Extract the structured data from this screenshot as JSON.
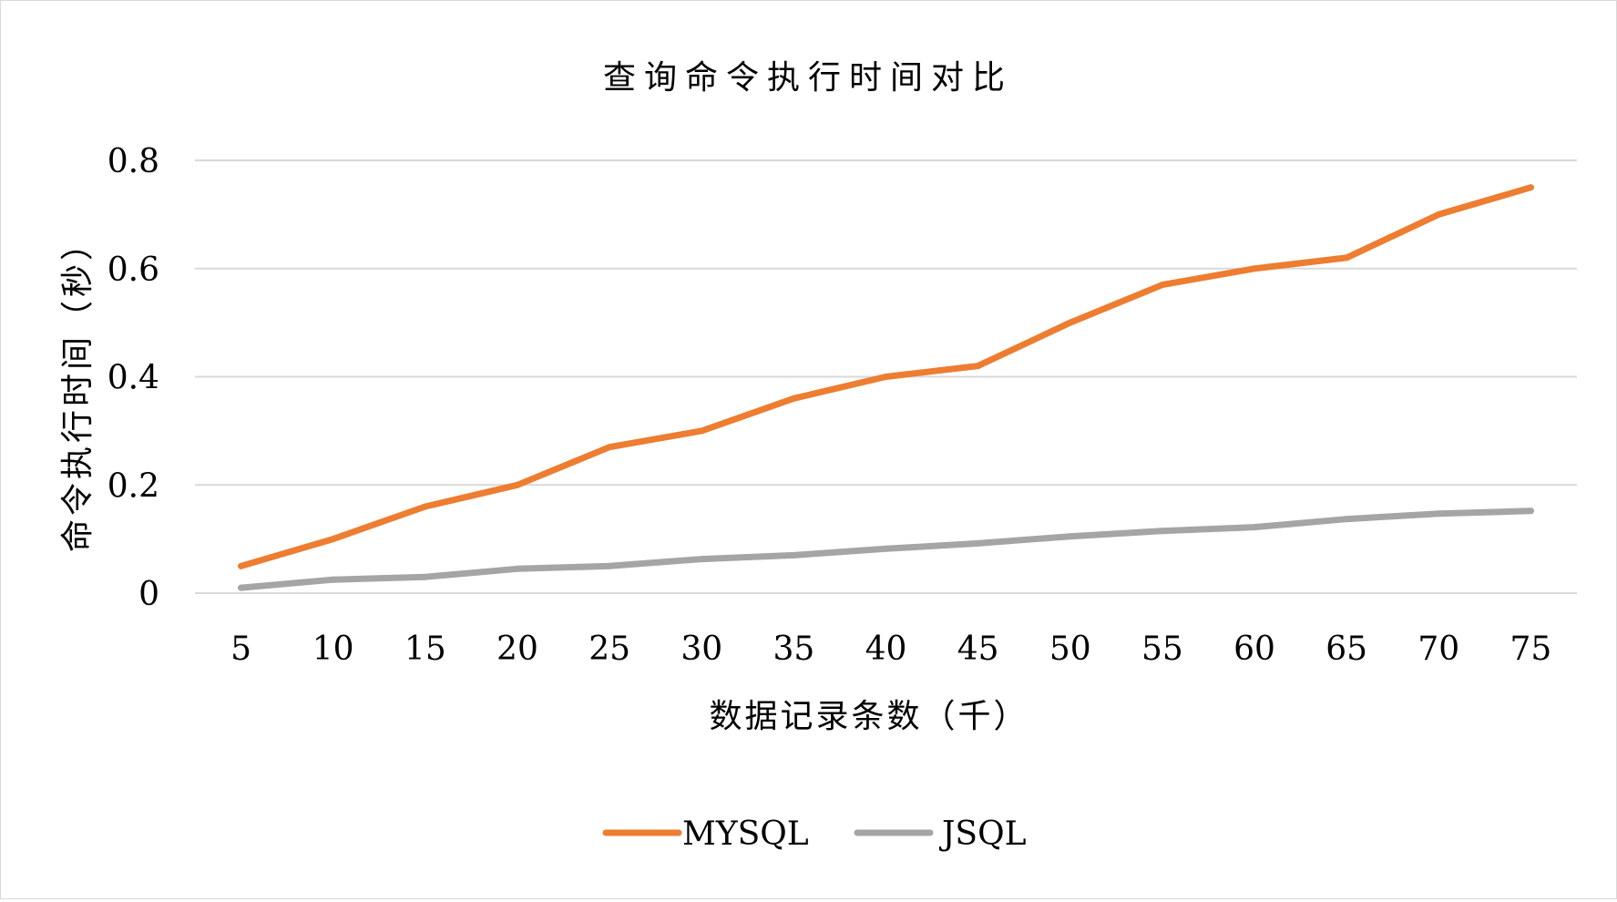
{
  "chart_data": {
    "type": "line",
    "title": "查询命令执行时间对比",
    "xlabel": "数据记录条数（千）",
    "ylabel": "命令执行时间（秒）",
    "categories": [
      "5",
      "10",
      "15",
      "20",
      "25",
      "30",
      "35",
      "40",
      "45",
      "50",
      "55",
      "60",
      "65",
      "70",
      "75"
    ],
    "y_ticks": [
      "0",
      "0.2",
      "0.4",
      "0.6",
      "0.8"
    ],
    "ylim": [
      0,
      0.8
    ],
    "grid": true,
    "legend_position": "bottom",
    "series": [
      {
        "name": "MYSQL",
        "color": "#ED7D31",
        "values": [
          0.05,
          0.1,
          0.16,
          0.2,
          0.27,
          0.3,
          0.36,
          0.4,
          0.42,
          0.5,
          0.57,
          0.6,
          0.62,
          0.7,
          0.75
        ]
      },
      {
        "name": "JSQL",
        "color": "#A5A5A5",
        "values": [
          0.01,
          0.025,
          0.03,
          0.045,
          0.05,
          0.063,
          0.07,
          0.082,
          0.092,
          0.105,
          0.115,
          0.122,
          0.137,
          0.147,
          0.152
        ]
      }
    ]
  }
}
